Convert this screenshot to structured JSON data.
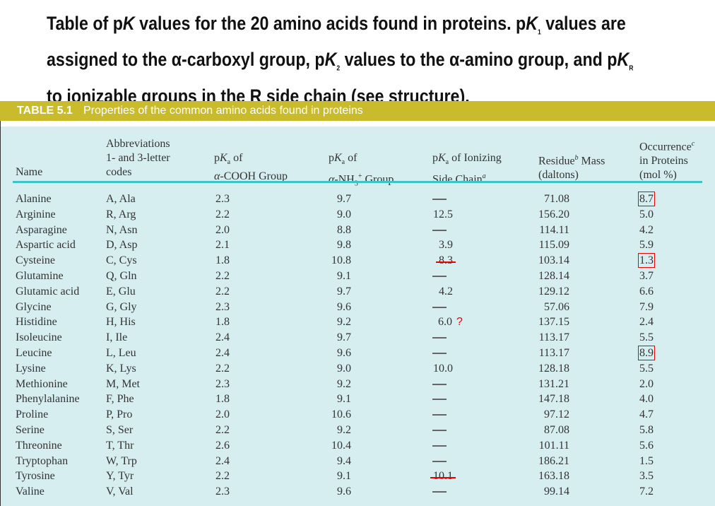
{
  "title": {
    "line1_a": "Table of p",
    "K": "K",
    "line1_b": " values for the 20 amino acids found in proteins. p",
    "line1_sub1": "1",
    "line1_c": " values are",
    "line2_a": "assigned to the ",
    "alpha": "α",
    "line2_b": "-carboxyl group, p",
    "line2_sub2": "2",
    "line2_c": " values to the ",
    "line2_d": "-amino group, and p",
    "line2_subR": "R",
    "line3": "to ionizable groups in the R side chain (see structure)."
  },
  "table_label": "TABLE 5.1",
  "table_title": "Properties of the common amino acids found in proteins",
  "headers": {
    "name": "Name",
    "abbr1": "Abbreviations",
    "abbr2": "1- and 3-letter",
    "abbr3": "codes",
    "cooh1": "pKa of",
    "cooh2": "α-COOH Group",
    "nh1": "pKa of",
    "nh2": "α-NH3+ Group",
    "side1": "pKa of Ionizing",
    "side2": "Side Chain",
    "side_sup": "a",
    "mass1": "Residue",
    "mass_sup": "b",
    "mass1b": " Mass",
    "mass2": "(daltons)",
    "occ1": "Occurrence",
    "occ_sup": "c",
    "occ2": "in Proteins",
    "occ3": "(mol %)"
  },
  "rows": [
    {
      "name": "Alanine",
      "abbr": "A, Ala",
      "cooh": "2.3",
      "nh": "9.7",
      "side": "—",
      "mass": "71.08",
      "occ": "8.7",
      "occ_boxed": true
    },
    {
      "name": "Arginine",
      "abbr": "R, Arg",
      "cooh": "2.2",
      "nh": "9.0",
      "side": "12.5",
      "mass": "156.20",
      "occ": "5.0"
    },
    {
      "name": "Asparagine",
      "abbr": "N, Asn",
      "cooh": "2.0",
      "nh": "8.8",
      "side": "—",
      "mass": "114.11",
      "occ": "4.2"
    },
    {
      "name": "Aspartic acid",
      "abbr": "D, Asp",
      "cooh": "2.1",
      "nh": "9.8",
      "side": "3.9",
      "mass": "115.09",
      "occ": "5.9"
    },
    {
      "name": "Cysteine",
      "abbr": "C, Cys",
      "cooh": "1.8",
      "nh": "10.8",
      "side": "8.3",
      "side_struck": true,
      "mass": "103.14",
      "occ": "1.3",
      "occ_boxed": true
    },
    {
      "name": "Glutamine",
      "abbr": "Q, Gln",
      "cooh": "2.2",
      "nh": "9.1",
      "side": "—",
      "mass": "128.14",
      "occ": "3.7"
    },
    {
      "name": "Glutamic acid",
      "abbr": "E, Glu",
      "cooh": "2.2",
      "nh": "9.7",
      "side": "4.2",
      "mass": "129.12",
      "occ": "6.6"
    },
    {
      "name": "Glycine",
      "abbr": "G, Gly",
      "cooh": "2.3",
      "nh": "9.6",
      "side": "—",
      "mass": "57.06",
      "occ": "7.9"
    },
    {
      "name": "Histidine",
      "abbr": "H, His",
      "cooh": "1.8",
      "nh": "9.2",
      "side": "6.0",
      "side_note": "?",
      "mass": "137.15",
      "occ": "2.4"
    },
    {
      "name": "Isoleucine",
      "abbr": "I, Ile",
      "cooh": "2.4",
      "nh": "9.7",
      "side": "—",
      "mass": "113.17",
      "occ": "5.5"
    },
    {
      "name": "Leucine",
      "abbr": "L, Leu",
      "cooh": "2.4",
      "nh": "9.6",
      "side": "—",
      "mass": "113.17",
      "occ": "8.9",
      "occ_boxed": true
    },
    {
      "name": "Lysine",
      "abbr": "K, Lys",
      "cooh": "2.2",
      "nh": "9.0",
      "side": "10.0",
      "mass": "128.18",
      "occ": "5.5"
    },
    {
      "name": "Methionine",
      "abbr": "M, Met",
      "cooh": "2.3",
      "nh": "9.2",
      "side": "—",
      "mass": "131.21",
      "occ": "2.0"
    },
    {
      "name": "Phenylalanine",
      "abbr": "F, Phe",
      "cooh": "1.8",
      "nh": "9.1",
      "side": "—",
      "mass": "147.18",
      "occ": "4.0"
    },
    {
      "name": "Proline",
      "abbr": "P, Pro",
      "cooh": "2.0",
      "nh": "10.6",
      "side": "—",
      "mass": "97.12",
      "occ": "4.7"
    },
    {
      "name": "Serine",
      "abbr": "S, Ser",
      "cooh": "2.2",
      "nh": "9.2",
      "side": "—",
      "mass": "87.08",
      "occ": "5.8"
    },
    {
      "name": "Threonine",
      "abbr": "T, Thr",
      "cooh": "2.6",
      "nh": "10.4",
      "side": "—",
      "mass": "101.11",
      "occ": "5.6"
    },
    {
      "name": "Tryptophan",
      "abbr": "W, Trp",
      "cooh": "2.4",
      "nh": "9.4",
      "side": "—",
      "mass": "186.21",
      "occ": "1.5"
    },
    {
      "name": "Tyrosine",
      "abbr": "Y, Tyr",
      "cooh": "2.2",
      "nh": "9.1",
      "side": "10.1",
      "side_struck": true,
      "mass": "163.18",
      "occ": "3.5"
    },
    {
      "name": "Valine",
      "abbr": "V, Val",
      "cooh": "2.3",
      "nh": "9.6",
      "side": "—",
      "mass": "99.14",
      "occ": "7.2"
    }
  ],
  "colors": {
    "bar": "#c9bb2c",
    "panel": "#d7eef0",
    "rule": "#3cc4c8",
    "annotation": "#ee0000"
  }
}
